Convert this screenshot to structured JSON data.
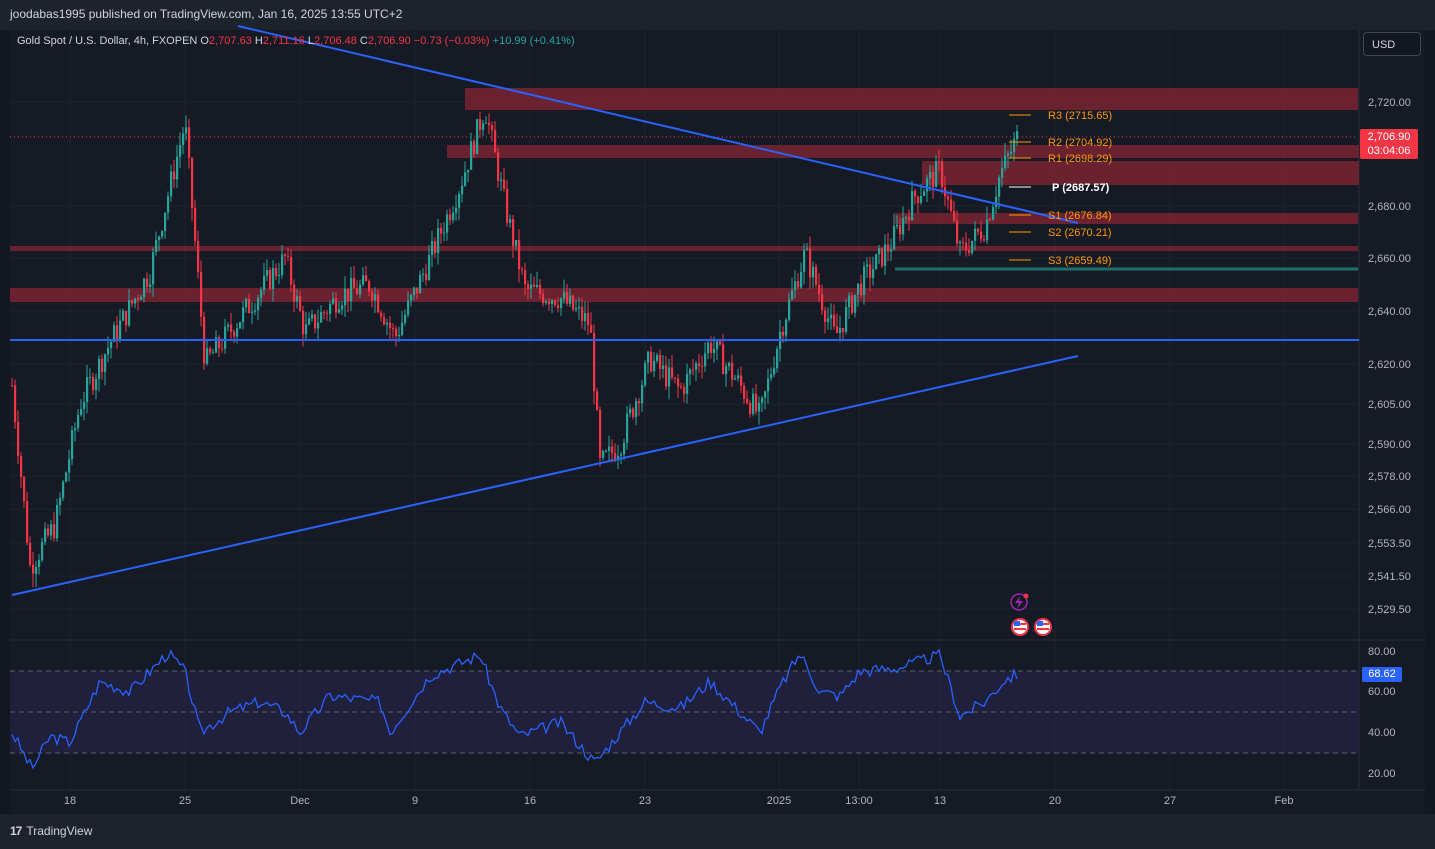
{
  "publisher_line": "joodabas1995 published on TradingView.com, Jan 16, 2025 13:55 UTC+2",
  "legend": {
    "symbol": "Gold Spot / U.S. Dollar, 4h, FXOPEN",
    "o_label": "O",
    "o_value": "2,707.63",
    "h_label": "H",
    "h_value": "2,711.16",
    "l_label": "L",
    "l_value": "2,706.48",
    "c_label": "C",
    "c_value": "2,706.90",
    "change": "−0.73 (−0.03%)",
    "change2": "+10.99 (+0.41%)"
  },
  "currency_button": "USD",
  "price_axis": [
    "2,720.00",
    "2,680.00",
    "2,660.00",
    "2,640.00",
    "2,620.00",
    "2,605.00",
    "2,590.00",
    "2,578.00",
    "2,566.00",
    "2,553.50",
    "2,541.50",
    "2,529.50"
  ],
  "current_price": {
    "price": "2,706.90",
    "countdown": "03:04:06"
  },
  "rsi_axis": [
    "80.00",
    "60.00",
    "40.00",
    "20.00"
  ],
  "rsi_value": "68.62",
  "time_axis": [
    "18",
    "25",
    "Dec",
    "9",
    "16",
    "23",
    "2025",
    "13:00",
    "13",
    "20",
    "27",
    "Feb"
  ],
  "pivots": [
    {
      "label": "R3 (2715.65)",
      "kind": "r"
    },
    {
      "label": "R2 (2704.92)",
      "kind": "r"
    },
    {
      "label": "R1 (2698.29)",
      "kind": "r"
    },
    {
      "label": "P (2687.57)",
      "kind": "p"
    },
    {
      "label": "S1 (2676.84)",
      "kind": "s"
    },
    {
      "label": "S2 (2670.21)",
      "kind": "s"
    },
    {
      "label": "S3 (2659.49)",
      "kind": "s"
    }
  ],
  "brand": "TradingView",
  "colors": {
    "up": "#26a69a",
    "down": "#f23645",
    "trendline": "#2962ff",
    "zone": "#7a2532",
    "rsi_line": "#2962ff",
    "pivot": "#ff9800",
    "background": "#161a25"
  },
  "icons": [
    "lightning-icon",
    "us-flag-event-icon",
    "us-flag-event-icon"
  ]
}
